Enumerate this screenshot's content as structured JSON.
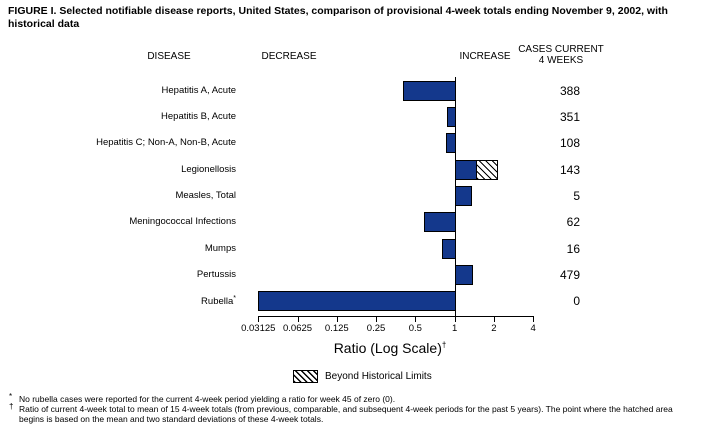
{
  "figure": {
    "title": "FIGURE I. Selected notifiable disease reports, United States, comparison of provisional 4-week totals ending November 9, 2002, with historical data"
  },
  "columns": {
    "disease": "DISEASE",
    "decrease": "DECREASE",
    "increase": "INCREASE",
    "cases_line1": "CASES CURRENT",
    "cases_line2": "4 WEEKS"
  },
  "chart_data": {
    "type": "bar",
    "orientation": "horizontal",
    "x_axis": {
      "label": "Ratio (Log Scale)",
      "label_footnote_marker": "†",
      "scale": "log2",
      "range": [
        0.03125,
        4
      ],
      "baseline": 1,
      "ticks": [
        0.03125,
        0.0625,
        0.125,
        0.25,
        0.5,
        1,
        2,
        4
      ],
      "tick_labels": [
        "0.03125",
        "0.0625",
        "0.125",
        "0.25",
        "0.5",
        "1",
        "2",
        "4"
      ]
    },
    "rows": [
      {
        "disease": "Hepatitis A, Acute",
        "ratio": 0.4,
        "cases": "388"
      },
      {
        "disease": "Hepatitis B, Acute",
        "ratio": 0.87,
        "cases": "351"
      },
      {
        "disease": "Hepatitis C; Non-A, Non-B, Acute",
        "ratio": 0.86,
        "cases": "108"
      },
      {
        "disease": "Legionellosis",
        "ratio": 1.47,
        "beyond_historical_limits_to": 2.16,
        "cases": "143"
      },
      {
        "disease": "Measles, Total",
        "ratio": 1.33,
        "cases": "5"
      },
      {
        "disease": "Meningococcal Infections",
        "ratio": 0.58,
        "cases": "62"
      },
      {
        "disease": "Mumps",
        "ratio": 0.8,
        "cases": "16"
      },
      {
        "disease": "Pertussis",
        "ratio": 1.37,
        "cases": "479"
      },
      {
        "disease": "Rubella",
        "footnote_marker": "*",
        "ratio": 0,
        "cases": "0"
      }
    ],
    "legend": {
      "hatched": "Beyond Historical Limits"
    },
    "colors": {
      "bar": "#14388c",
      "bar_border": "#000000",
      "hatch_line": "#000000"
    }
  },
  "footnotes": [
    {
      "marker": "*",
      "text": "No rubella cases were reported for the current 4-week period yielding a ratio for week 45 of zero (0)."
    },
    {
      "marker": "†",
      "text": "Ratio of current 4-week total to mean of 15 4-week totals (from previous, comparable, and subsequent 4-week periods for the past 5 years). The point where the hatched area begins is based on the mean and two standard deviations of these 4-week totals."
    }
  ]
}
